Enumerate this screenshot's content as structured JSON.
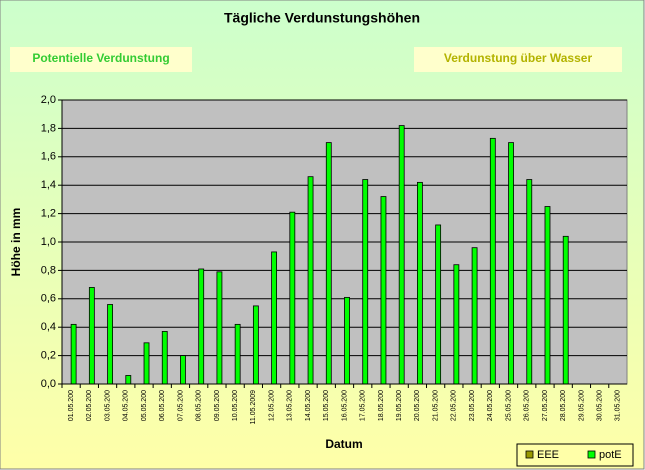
{
  "chart_data": {
    "type": "bar",
    "title": "Tägliche Verdunstungshöhen",
    "annotations": [
      "Potentielle Verdunstung",
      "Verdunstung über Wasser"
    ],
    "x_label": "Datum",
    "y_label": "Höhe in mm",
    "categories": [
      "01.05.200",
      "02.05.200",
      "03.05.200",
      "04.05.200",
      "05.05.200",
      "06.05.200",
      "07.05.200",
      "08.05.200",
      "09.05.200",
      "10.05.200",
      "11.05.2009",
      "12.05.200",
      "13.05.200",
      "14.05.200",
      "15.05.200",
      "16.05.200",
      "17.05.200",
      "18.05.200",
      "19.05.200",
      "20.05.200",
      "21.05.200",
      "22.05.200",
      "23.05.200",
      "24.05.200",
      "25.05.200",
      "26.05.200",
      "27.05.200",
      "28.05.200",
      "29.05.200",
      "30.05.200",
      "31.05.200"
    ],
    "series": [
      {
        "name": "EEE",
        "color": "#999900",
        "values": [
          null,
          null,
          null,
          null,
          null,
          null,
          null,
          null,
          null,
          null,
          null,
          null,
          null,
          null,
          null,
          null,
          null,
          null,
          null,
          null,
          null,
          null,
          null,
          null,
          null,
          null,
          null,
          null,
          null,
          null,
          null
        ]
      },
      {
        "name": "potE",
        "color": "#00ff00",
        "values": [
          0.42,
          0.68,
          0.56,
          0.06,
          0.29,
          0.37,
          0.2,
          0.81,
          0.79,
          0.42,
          0.55,
          0.93,
          1.21,
          1.46,
          1.7,
          0.61,
          1.44,
          1.32,
          1.82,
          1.42,
          1.12,
          0.84,
          0.96,
          1.73,
          1.7,
          1.44,
          1.25,
          1.04,
          null,
          null,
          null
        ]
      }
    ],
    "ylim": [
      0,
      2
    ],
    "yticks": [
      {
        "value": 0,
        "label": "0,0"
      },
      {
        "value": 0.2,
        "label": "0,2"
      },
      {
        "value": 0.4,
        "label": "0,4"
      },
      {
        "value": 0.6,
        "label": "0,6"
      },
      {
        "value": 0.8,
        "label": "0,8"
      },
      {
        "value": 1,
        "label": "1,0"
      },
      {
        "value": 1.2,
        "label": "1,2"
      },
      {
        "value": 1.4,
        "label": "1,4"
      },
      {
        "value": 1.6,
        "label": "1,6"
      },
      {
        "value": 1.8,
        "label": "1,8"
      },
      {
        "value": 2,
        "label": "2,0"
      }
    ],
    "grid": true,
    "legend": "bottom-right"
  }
}
